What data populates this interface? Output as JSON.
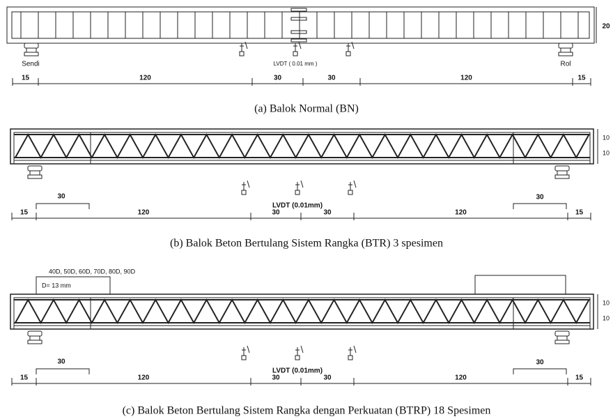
{
  "panels": [
    {
      "height_label": "20",
      "left_support": "Sendi",
      "right_support": "Rol",
      "lvdt": "LVDT ( 0.01 mm )",
      "dimensions": [
        "15",
        "120",
        "30",
        "30",
        "120",
        "15"
      ],
      "caption": "(a)  Balok Normal (BN)"
    },
    {
      "height_labels": [
        "10",
        "10"
      ],
      "lvdt": "LVDT (0.01mm)",
      "left_bracket": "30",
      "right_bracket": "30",
      "dimensions": [
        "15",
        "120",
        "30",
        "30",
        "120",
        "15"
      ],
      "caption": "(b)  Balok Beton Bertulang Sistem Rangka (BTR) 3 spesimen"
    },
    {
      "plate_note": "40D, 50D, 60D, 70D, 80D, 90D",
      "plate_diameter": "D= 13 mm",
      "height_labels": [
        "10",
        "10"
      ],
      "lvdt": "LVDT (0.01mm)",
      "left_bracket": "30",
      "right_bracket": "30",
      "dimensions": [
        "15",
        "120",
        "30",
        "30",
        "120",
        "15"
      ],
      "caption": "(c)  Balok Beton Bertulang Sistem Rangka dengan Perkuatan (BTRP) 18 Spesimen"
    }
  ]
}
